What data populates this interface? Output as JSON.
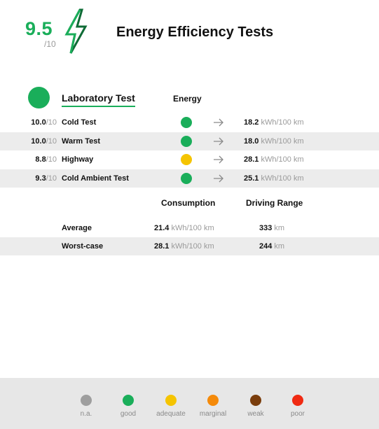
{
  "header": {
    "score": "9.5",
    "score_denominator": "/10",
    "bolt_icon": "lightning-bolt-icon",
    "title": "Energy Efficiency Tests"
  },
  "lab": {
    "title": "Laboratory Test",
    "energy_column": "Energy",
    "status_color": "#1aae5a"
  },
  "tests": [
    {
      "score": "10.0",
      "den": "/10",
      "label": "Cold Test",
      "rating": "good",
      "value": "18.2",
      "unit": "kWh/100 km"
    },
    {
      "score": "10.0",
      "den": "/10",
      "label": "Warm Test",
      "rating": "good",
      "value": "18.0",
      "unit": "kWh/100 km"
    },
    {
      "score": "8.8",
      "den": "/10",
      "label": "Highway",
      "rating": "adequate",
      "value": "28.1",
      "unit": "kWh/100 km"
    },
    {
      "score": "9.3",
      "den": "/10",
      "label": "Cold Ambient Test",
      "rating": "good",
      "value": "25.1",
      "unit": "kWh/100 km"
    }
  ],
  "consumption": {
    "col_consumption": "Consumption",
    "col_range": "Driving Range",
    "rows": [
      {
        "label": "Average",
        "consumption": "21.4",
        "consumption_unit": "kWh/100 km",
        "range": "333",
        "range_unit": "km"
      },
      {
        "label": "Worst-case",
        "consumption": "28.1",
        "consumption_unit": "kWh/100 km",
        "range": "244",
        "range_unit": "km"
      }
    ]
  },
  "legend": [
    {
      "label": "n.a.",
      "color": "#9e9e9e"
    },
    {
      "label": "good",
      "color": "#1aae5a"
    },
    {
      "label": "adequate",
      "color": "#f5c400"
    },
    {
      "label": "marginal",
      "color": "#f58a0a"
    },
    {
      "label": "weak",
      "color": "#7a3d0c"
    },
    {
      "label": "poor",
      "color": "#f02a12"
    }
  ],
  "colors": {
    "good": "#1aae5a",
    "adequate": "#f5c400",
    "accent": "#1aae5a"
  }
}
